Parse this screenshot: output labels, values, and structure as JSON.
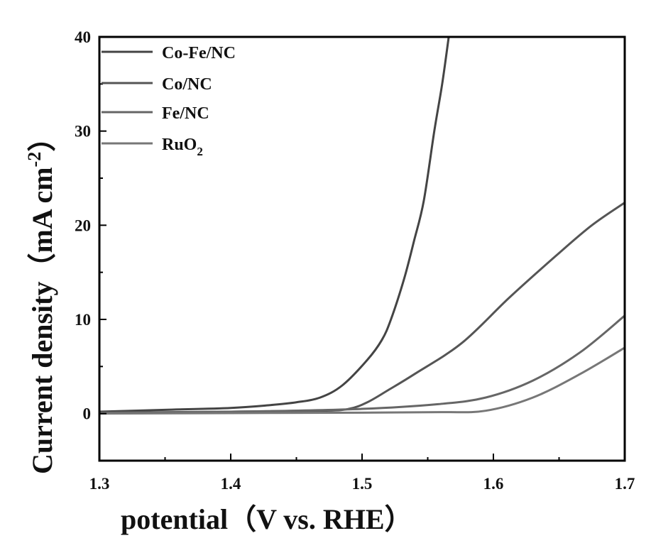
{
  "chart_data": {
    "type": "line",
    "title": "",
    "xlabel": "potential（V vs. RHE）",
    "ylabel": "Current density（mA cm",
    "ylabel_sup": "-2",
    "ylabel_end": "）",
    "xlim": [
      1.3,
      1.7
    ],
    "ylim": [
      -5,
      40
    ],
    "xticks": [
      1.3,
      1.4,
      1.5,
      1.6,
      1.7
    ],
    "xtick_labels": [
      "1.3",
      "1.4",
      "1.5",
      "1.6",
      "1.7"
    ],
    "yticks": [
      0,
      10,
      20,
      30,
      40
    ],
    "ytick_labels": [
      "0",
      "10",
      "20",
      "30",
      "40"
    ],
    "grid": false,
    "legend_position": "top-left",
    "series": [
      {
        "name": "Co-Fe/NC",
        "color": "#444444",
        "x": [
          1.3,
          1.35,
          1.4,
          1.43,
          1.45,
          1.468,
          1.485,
          1.504,
          1.515,
          1.522,
          1.532,
          1.5395,
          1.547,
          1.555,
          1.561,
          1.566
        ],
        "y": [
          0.2,
          0.4,
          0.6,
          0.9,
          1.2,
          1.7,
          3.0,
          5.7,
          7.8,
          10,
          14.3,
          18.3,
          22.6,
          30,
          35,
          40
        ]
      },
      {
        "name": "Co/NC",
        "color": "#555555",
        "x": [
          1.3,
          1.4,
          1.47,
          1.49,
          1.504,
          1.52,
          1.54,
          1.576,
          1.612,
          1.648,
          1.675,
          1.7
        ],
        "y": [
          0.1,
          0.2,
          0.3,
          0.5,
          1.2,
          2.5,
          4.2,
          7.5,
          12.3,
          16.8,
          20,
          22.4
        ]
      },
      {
        "name": "Fe/NC",
        "color": "#666666",
        "x": [
          1.3,
          1.4,
          1.5,
          1.558,
          1.594,
          1.63,
          1.666,
          1.7
        ],
        "y": [
          0.1,
          0.2,
          0.5,
          1.0,
          1.7,
          3.5,
          6.5,
          10.4
        ]
      },
      {
        "name": "RuO2",
        "label_main": "RuO",
        "label_sub": "2",
        "color": "#777777",
        "x": [
          1.3,
          1.4,
          1.5,
          1.56,
          1.594,
          1.63,
          1.666,
          1.7
        ],
        "y": [
          0.0,
          0.05,
          0.1,
          0.15,
          0.3,
          1.7,
          4.2,
          7.0
        ]
      }
    ]
  }
}
